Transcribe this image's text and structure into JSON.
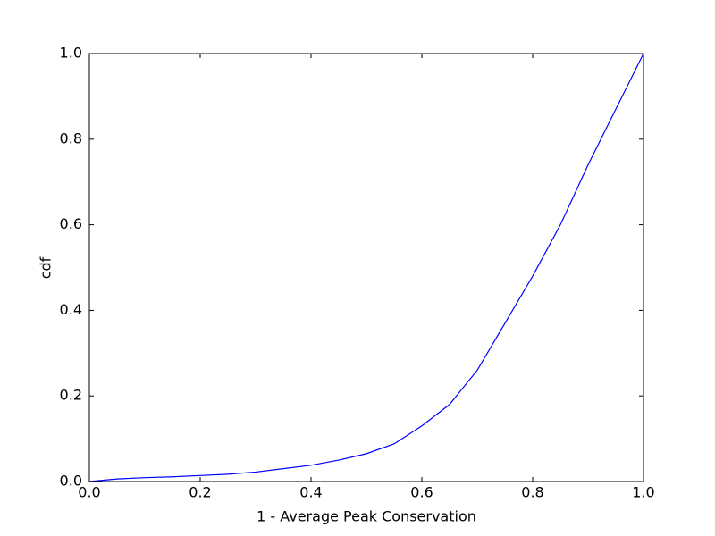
{
  "chart_data": {
    "type": "line",
    "x_label": "1 - Average Peak Conservation",
    "y_label": "cdf",
    "x": [
      0.0,
      0.05,
      0.1,
      0.15,
      0.2,
      0.25,
      0.3,
      0.35,
      0.4,
      0.45,
      0.5,
      0.55,
      0.6,
      0.65,
      0.7,
      0.75,
      0.8,
      0.85,
      0.9,
      0.95,
      1.0
    ],
    "series": [
      {
        "color": "#0000ff",
        "values": [
          0.0,
          0.006,
          0.009,
          0.011,
          0.014,
          0.017,
          0.022,
          0.03,
          0.038,
          0.05,
          0.065,
          0.088,
          0.13,
          0.18,
          0.26,
          0.37,
          0.48,
          0.6,
          0.74,
          0.87,
          1.0
        ]
      }
    ],
    "xlim": [
      0,
      1
    ],
    "ylim": [
      0,
      1
    ],
    "xticks": [
      {
        "value": 0,
        "label": "0.0"
      },
      0.2,
      0.4,
      0.6,
      0.8,
      {
        "value": 1,
        "label": "1.0"
      }
    ],
    "yticks": [
      {
        "value": 0,
        "label": "0.0"
      },
      0.2,
      0.4,
      0.6,
      0.8,
      {
        "value": 1,
        "label": "1.0"
      }
    ],
    "grid": false
  }
}
